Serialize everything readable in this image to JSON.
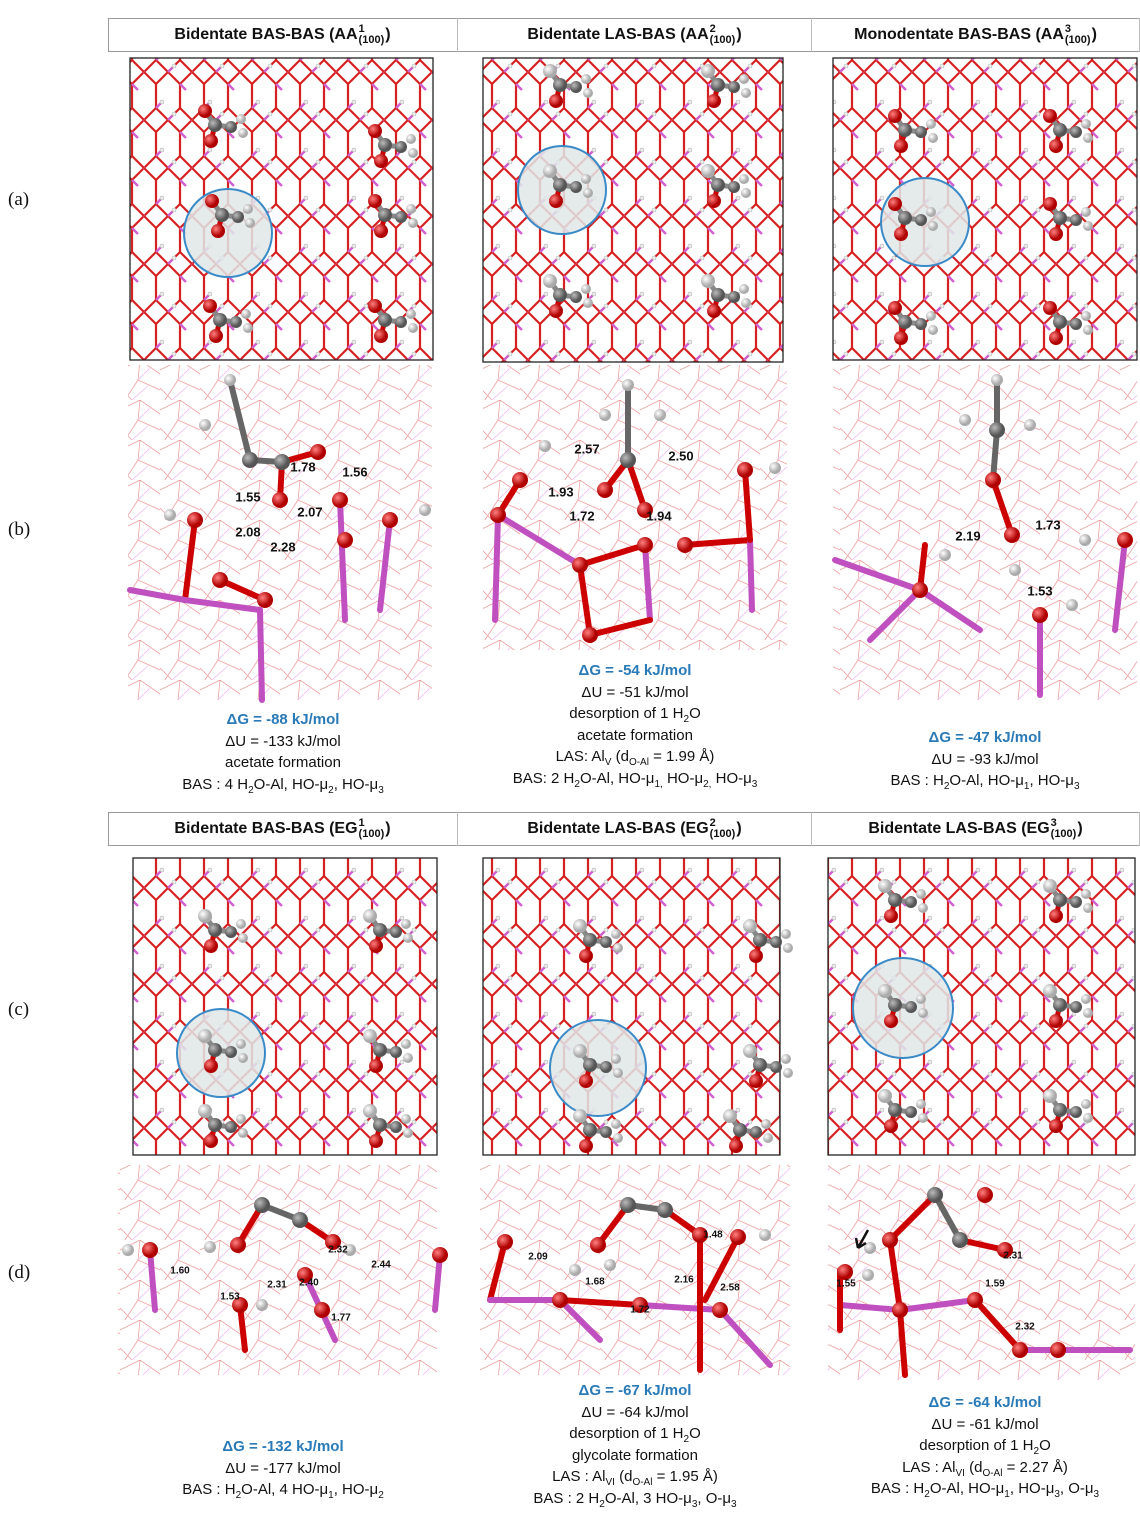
{
  "row_labels": [
    "(a)",
    "(b)",
    "(c)",
    "(d)"
  ],
  "headers": [
    [
      {
        "t": "Bidentate BAS-BAS (AA"
      },
      {
        "sup": "1",
        "sub": "(100)"
      },
      {
        "t": ")"
      }
    ],
    [
      {
        "t": "Bidentate LAS-BAS (AA"
      },
      {
        "sup": "2",
        "sub": "(100)"
      },
      {
        "t": ")"
      }
    ],
    [
      {
        "t": "Monodentate BAS-BAS (AA"
      },
      {
        "sup": "3",
        "sub": "(100)"
      },
      {
        "t": ")"
      }
    ],
    [
      {
        "t": "Bidentate BAS-BAS (EG"
      },
      {
        "sup": "1",
        "sub": "(100)"
      },
      {
        "t": ")"
      }
    ],
    [
      {
        "t": "Bidentate LAS-BAS (EG"
      },
      {
        "sup": "2",
        "sub": "(100)"
      },
      {
        "t": ")"
      }
    ],
    [
      {
        "t": "Bidentate LAS-BAS (EG"
      },
      {
        "sup": "3",
        "sub": "(100)"
      },
      {
        "t": ")"
      }
    ]
  ],
  "distances": [
    [
      "1.78",
      "1.56",
      "1.55",
      "2.07",
      "2.08",
      "2.28"
    ],
    [
      "2.57",
      "2.50",
      "1.93",
      "1.72",
      "1.94"
    ],
    [
      "2.19",
      "1.73",
      "1.53"
    ],
    [
      "1.60",
      "2.32",
      "2.44",
      "2.31",
      "2.40",
      "1.53",
      "1.77"
    ],
    [
      "2.09",
      "1.48",
      "1.68",
      "2.16",
      "2.58",
      "1.72"
    ],
    [
      "2.31",
      "1.59",
      "1.55",
      "2.32"
    ]
  ],
  "captions": [
    [
      [
        {
          "t": "ΔG = -88 kJ/mol"
        }
      ],
      [
        {
          "t": "ΔU = -133 kJ/mol"
        }
      ],
      [
        {
          "t": "acetate formation"
        }
      ],
      [
        {
          "t": "BAS : 4 H"
        },
        {
          "sub": "2"
        },
        {
          "t": "O-Al, HO-μ"
        },
        {
          "sub": "2"
        },
        {
          "t": ", HO-μ"
        },
        {
          "sub": "3"
        }
      ]
    ],
    [
      [
        {
          "t": "ΔG = -54 kJ/mol"
        }
      ],
      [
        {
          "t": "ΔU = -51 kJ/mol"
        }
      ],
      [
        {
          "t": "desorption of 1 H"
        },
        {
          "sub": "2"
        },
        {
          "t": "O"
        }
      ],
      [
        {
          "t": "acetate formation"
        }
      ],
      [
        {
          "t": "LAS: Al"
        },
        {
          "sub": "V"
        },
        {
          "t": " (d"
        },
        {
          "sub": "O-Al"
        },
        {
          "t": " = 1.99 Å)"
        }
      ],
      [
        {
          "t": "BAS: 2 H"
        },
        {
          "sub": "2"
        },
        {
          "t": "O-Al, HO-μ"
        },
        {
          "sub": "1,"
        },
        {
          "t": " HO-μ"
        },
        {
          "sub": "2,"
        },
        {
          "t": " HO-μ"
        },
        {
          "sub": "3"
        }
      ]
    ],
    [
      [
        {
          "t": "ΔG = -47 kJ/mol"
        }
      ],
      [
        {
          "t": "ΔU = -93 kJ/mol"
        }
      ],
      [
        {
          "t": "BAS : H"
        },
        {
          "sub": "2"
        },
        {
          "t": "O-Al, HO-μ"
        },
        {
          "sub": "1"
        },
        {
          "t": ", HO-μ"
        },
        {
          "sub": "3"
        }
      ]
    ],
    [
      [
        {
          "t": "ΔG = -132 kJ/mol"
        }
      ],
      [
        {
          "t": "ΔU = -177 kJ/mol"
        }
      ],
      [
        {
          "t": "BAS : H"
        },
        {
          "sub": "2"
        },
        {
          "t": "O-Al, 4 HO-μ"
        },
        {
          "sub": "1"
        },
        {
          "t": ", HO-μ"
        },
        {
          "sub": "2"
        }
      ]
    ],
    [
      [
        {
          "t": "ΔG = -67 kJ/mol"
        }
      ],
      [
        {
          "t": "ΔU = -64 kJ/mol"
        }
      ],
      [
        {
          "t": "desorption of 1 H"
        },
        {
          "sub": "2"
        },
        {
          "t": "O"
        }
      ],
      [
        {
          "t": "glycolate formation"
        }
      ],
      [
        {
          "t": "LAS : Al"
        },
        {
          "sub": "VI"
        },
        {
          "t": " (d"
        },
        {
          "sub": "O-Al"
        },
        {
          "t": " = 1.95 Å)"
        }
      ],
      [
        {
          "t": "BAS : 2 H"
        },
        {
          "sub": "2"
        },
        {
          "t": "O-Al, 3 HO-μ"
        },
        {
          "sub": "3"
        },
        {
          "t": ", O-μ"
        },
        {
          "sub": "3"
        }
      ]
    ],
    [
      [
        {
          "t": "ΔG = -64 kJ/mol"
        }
      ],
      [
        {
          "t": "ΔU = -61 kJ/mol"
        }
      ],
      [
        {
          "t": "desorption of 1 H"
        },
        {
          "sub": "2"
        },
        {
          "t": "O"
        }
      ],
      [
        {
          "t": "LAS : Al"
        },
        {
          "sub": "VI"
        },
        {
          "t": " (d"
        },
        {
          "sub": "O-Al"
        },
        {
          "t": " = 2.27 Å)"
        }
      ],
      [
        {
          "t": "BAS : H"
        },
        {
          "sub": "2"
        },
        {
          "t": "O-Al, HO-μ"
        },
        {
          "sub": "1"
        },
        {
          "t": ", HO-μ"
        },
        {
          "sub": "3"
        },
        {
          "t": ", O-μ"
        },
        {
          "sub": "3"
        }
      ]
    ]
  ]
}
